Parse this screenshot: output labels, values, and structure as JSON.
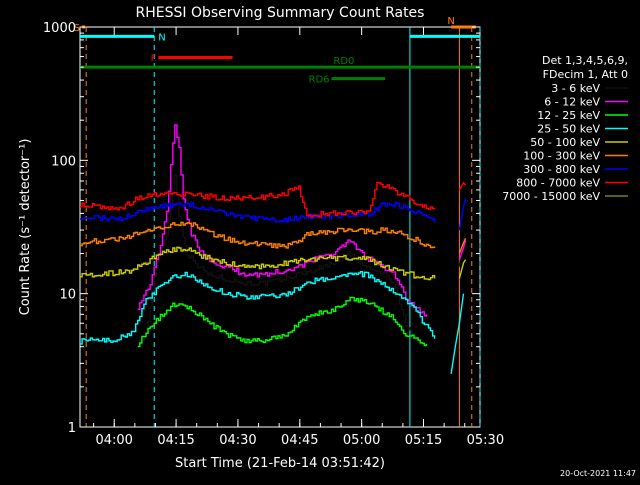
{
  "chart_data": {
    "type": "line",
    "title": "RHESSI Observing Summary Count Rates",
    "xlabel": "Start Time (21-Feb-14 03:51:42)",
    "ylabel": "Count Rate (s⁻¹ detector⁻¹)",
    "yscale": "log",
    "ylim": [
      1,
      1000
    ],
    "xlim_minutes": [
      0,
      97
    ],
    "y_ticks": [
      {
        "value": 1,
        "label": "1"
      },
      {
        "value": 10,
        "label": "10"
      },
      {
        "value": 100,
        "label": "100"
      },
      {
        "value": 1000,
        "label": "1000"
      }
    ],
    "x_ticks": [
      {
        "minutes": 8.3,
        "label": "04:00"
      },
      {
        "minutes": 23.3,
        "label": "04:15"
      },
      {
        "minutes": 38.3,
        "label": "04:30"
      },
      {
        "minutes": 53.3,
        "label": "04:45"
      },
      {
        "minutes": 68.3,
        "label": "05:00"
      },
      {
        "minutes": 83.3,
        "label": "05:15"
      },
      {
        "minutes": 98.3,
        "label": "05:30"
      }
    ],
    "legend_header": [
      "Det 1,3,4,5,6,9,",
      "FDecim 1, Att 0"
    ],
    "series": [
      {
        "name": "3 - 6 keV",
        "color": "#000000",
        "points": [
          [
            14,
            4.3
          ],
          [
            15,
            4.5
          ],
          [
            16,
            5
          ],
          [
            17,
            8
          ],
          [
            18,
            13
          ],
          [
            19,
            20
          ],
          [
            21,
            28
          ],
          [
            22,
            45
          ],
          [
            23,
            80
          ],
          [
            24,
            38
          ],
          [
            26,
            20
          ],
          [
            28,
            17
          ],
          [
            31,
            14
          ],
          [
            35,
            13
          ],
          [
            40,
            12
          ],
          [
            45,
            12
          ],
          [
            50,
            13
          ],
          [
            53,
            14
          ],
          [
            57,
            15
          ],
          [
            61,
            17
          ],
          [
            63,
            18
          ],
          [
            65,
            20
          ],
          [
            67,
            18
          ],
          [
            69,
            16
          ],
          [
            71,
            15
          ],
          [
            74,
            14
          ],
          [
            76,
            12
          ],
          [
            79,
            6
          ],
          [
            82,
            4.2
          ],
          [
            83,
            4.2
          ]
        ]
      },
      {
        "name": "6 - 12 keV",
        "color": "#ff00ff",
        "points": [
          [
            14,
            8
          ],
          [
            17,
            12
          ],
          [
            19,
            20
          ],
          [
            21,
            40
          ],
          [
            22,
            90
          ],
          [
            23,
            190
          ],
          [
            24,
            120
          ],
          [
            25,
            50
          ],
          [
            27,
            28
          ],
          [
            30,
            19
          ],
          [
            35,
            16
          ],
          [
            40,
            14
          ],
          [
            45,
            14
          ],
          [
            50,
            15
          ],
          [
            53,
            16
          ],
          [
            57,
            18
          ],
          [
            61,
            20
          ],
          [
            63,
            22
          ],
          [
            65,
            25
          ],
          [
            67,
            22
          ],
          [
            69,
            19
          ],
          [
            72,
            17
          ],
          [
            75,
            15
          ],
          [
            77,
            13
          ],
          [
            79,
            9
          ],
          [
            82,
            7.5
          ],
          [
            84,
            7
          ]
        ]
      },
      {
        "name": "12 - 25 keV",
        "color": "#00ff00",
        "points": [
          [
            14,
            4.2
          ],
          [
            17,
            5.5
          ],
          [
            19,
            6.5
          ],
          [
            22,
            8
          ],
          [
            24,
            8.5
          ],
          [
            26,
            8
          ],
          [
            30,
            6.5
          ],
          [
            35,
            5
          ],
          [
            40,
            4.4
          ],
          [
            45,
            4.5
          ],
          [
            50,
            5
          ],
          [
            53,
            6
          ],
          [
            57,
            7
          ],
          [
            61,
            7.5
          ],
          [
            65,
            9
          ],
          [
            69,
            9
          ],
          [
            73,
            7.5
          ],
          [
            76,
            6.5
          ],
          [
            79,
            5
          ],
          [
            82,
            4.5
          ],
          [
            84,
            4.2
          ]
        ]
      },
      {
        "name": "25 - 50 keV",
        "color": "#00ffff",
        "points": [
          [
            0,
            4.4
          ],
          [
            4,
            4.6
          ],
          [
            8,
            4.5
          ],
          [
            13,
            5.2
          ],
          [
            16,
            9
          ],
          [
            19,
            11
          ],
          [
            22,
            13
          ],
          [
            25,
            14
          ],
          [
            28,
            13
          ],
          [
            32,
            11
          ],
          [
            36,
            10
          ],
          [
            40,
            9.5
          ],
          [
            45,
            9.5
          ],
          [
            50,
            10
          ],
          [
            53,
            11
          ],
          [
            57,
            12.5
          ],
          [
            61,
            13
          ],
          [
            65,
            14
          ],
          [
            69,
            14
          ],
          [
            73,
            12
          ],
          [
            76,
            10.5
          ],
          [
            79,
            9
          ],
          [
            82,
            7
          ],
          [
            86,
            4.6
          ]
        ]
      },
      {
        "name": "50 - 100 keV",
        "color": "#cccc00",
        "points": [
          [
            0,
            14
          ],
          [
            5,
            14
          ],
          [
            10,
            14.5
          ],
          [
            13,
            15
          ],
          [
            17,
            18
          ],
          [
            21,
            21
          ],
          [
            25,
            22
          ],
          [
            30,
            19
          ],
          [
            35,
            17
          ],
          [
            40,
            16
          ],
          [
            45,
            16
          ],
          [
            50,
            17
          ],
          [
            55,
            18
          ],
          [
            60,
            18.5
          ],
          [
            65,
            18.5
          ],
          [
            70,
            18
          ],
          [
            74,
            16
          ],
          [
            78,
            14.5
          ],
          [
            82,
            13.5
          ],
          [
            86,
            13
          ]
        ]
      },
      {
        "name": "100 - 300 keV",
        "color": "#ff8000",
        "points": [
          [
            0,
            24
          ],
          [
            5,
            25
          ],
          [
            10,
            26
          ],
          [
            14,
            28
          ],
          [
            18,
            31
          ],
          [
            22,
            33
          ],
          [
            26,
            34
          ],
          [
            30,
            30
          ],
          [
            35,
            26
          ],
          [
            40,
            24
          ],
          [
            45,
            23
          ],
          [
            50,
            23
          ],
          [
            53,
            24
          ],
          [
            55,
            28
          ],
          [
            60,
            29
          ],
          [
            65,
            30
          ],
          [
            70,
            29
          ],
          [
            74,
            30
          ],
          [
            78,
            28
          ],
          [
            82,
            25
          ],
          [
            86,
            22
          ]
        ]
      },
      {
        "name": "300 - 800 keV",
        "color": "#0000ff",
        "points": [
          [
            0,
            38
          ],
          [
            5,
            37
          ],
          [
            10,
            37
          ],
          [
            14,
            41
          ],
          [
            18,
            44
          ],
          [
            22,
            46
          ],
          [
            26,
            47
          ],
          [
            30,
            44
          ],
          [
            35,
            40
          ],
          [
            40,
            37
          ],
          [
            45,
            36
          ],
          [
            50,
            36
          ],
          [
            53,
            37
          ],
          [
            55,
            38
          ],
          [
            60,
            38
          ],
          [
            65,
            39
          ],
          [
            70,
            39
          ],
          [
            73,
            46
          ],
          [
            75,
            48
          ],
          [
            78,
            45
          ],
          [
            82,
            40
          ],
          [
            86,
            34
          ]
        ]
      },
      {
        "name": "800 - 7000 keV",
        "color": "#ff0000",
        "points": [
          [
            0,
            47
          ],
          [
            5,
            45
          ],
          [
            10,
            44
          ],
          [
            14,
            52
          ],
          [
            18,
            55
          ],
          [
            22,
            56
          ],
          [
            26,
            56
          ],
          [
            30,
            54
          ],
          [
            35,
            52
          ],
          [
            40,
            52
          ],
          [
            45,
            53
          ],
          [
            50,
            57
          ],
          [
            53,
            62
          ],
          [
            55,
            38
          ],
          [
            60,
            40
          ],
          [
            65,
            41
          ],
          [
            70,
            40
          ],
          [
            72,
            66
          ],
          [
            75,
            63
          ],
          [
            78,
            55
          ],
          [
            82,
            47
          ],
          [
            86,
            43
          ]
        ]
      },
      {
        "name": "7000 - 15000 keV",
        "color": "#808000",
        "points": []
      }
    ],
    "tail_points": [
      {
        "series": 0,
        "points": [
          [
            92,
            16
          ],
          [
            93,
            26
          ],
          [
            93.5,
            28
          ]
        ]
      },
      {
        "series": 1,
        "points": [
          [
            92,
            18
          ],
          [
            93,
            22
          ],
          [
            93.5,
            25
          ]
        ]
      },
      {
        "series": 3,
        "points": [
          [
            90,
            2.5
          ],
          [
            91,
            4
          ],
          [
            92,
            6
          ],
          [
            93,
            10
          ]
        ]
      },
      {
        "series": 4,
        "points": [
          [
            92,
            13
          ],
          [
            93,
            17
          ],
          [
            93.5,
            18
          ]
        ]
      },
      {
        "series": 5,
        "points": [
          [
            92,
            20
          ],
          [
            93,
            24
          ],
          [
            93.5,
            26
          ]
        ]
      },
      {
        "series": 6,
        "points": [
          [
            92,
            30
          ],
          [
            93,
            45
          ],
          [
            93.5,
            52
          ]
        ]
      },
      {
        "series": 7,
        "points": [
          [
            92,
            60
          ],
          [
            93,
            68
          ],
          [
            93.5,
            65
          ]
        ]
      }
    ],
    "state_bars": [
      {
        "label": "S",
        "color": "#ff8000",
        "y": 1000,
        "x1": 0.5,
        "x2": 1.2,
        "side": "left"
      },
      {
        "label": "",
        "color": "#00ffff",
        "y": 850,
        "x1": 0,
        "x2": 18,
        "side": "none"
      },
      {
        "label": "N",
        "color": "#00ffff",
        "y": 850,
        "x1": 18,
        "x2": 18,
        "side": "right"
      },
      {
        "label": "F",
        "color": "#ff0000",
        "y": 590,
        "x1": 19,
        "x2": 37,
        "side": "left"
      },
      {
        "label": "",
        "color": "#00ffff",
        "y": 850,
        "x1": 80,
        "x2": 97,
        "side": "none"
      },
      {
        "label": "N",
        "color": "#ff8000",
        "y": 1000,
        "x1": 90,
        "x2": 96,
        "side": "top"
      },
      {
        "label": "",
        "color": "#008000",
        "y": 500,
        "x1": 0,
        "x2": 97,
        "side": "none"
      },
      {
        "label": "RD0",
        "color": "#008000",
        "y": 500,
        "x1": 64,
        "x2": 64,
        "side": "top"
      },
      {
        "label": "RD6",
        "color": "#008000",
        "y": 410,
        "x1": 61,
        "x2": 74,
        "side": "left"
      }
    ],
    "vertical_markers": [
      {
        "minutes": 1.5,
        "color": "#ff8000",
        "dashed": true
      },
      {
        "minutes": 18,
        "color": "#00ffff",
        "dashed": true
      },
      {
        "minutes": 80,
        "color": "#00ffff",
        "dashed": false
      },
      {
        "minutes": 92,
        "color": "#ff8000",
        "dashed": false
      },
      {
        "minutes": 95,
        "color": "#ff8000",
        "dashed": true
      },
      {
        "minutes": 97,
        "color": "#00ffff",
        "dashed": true
      }
    ]
  },
  "footer": {
    "timestamp": "20-Oct-2021 11:47"
  }
}
